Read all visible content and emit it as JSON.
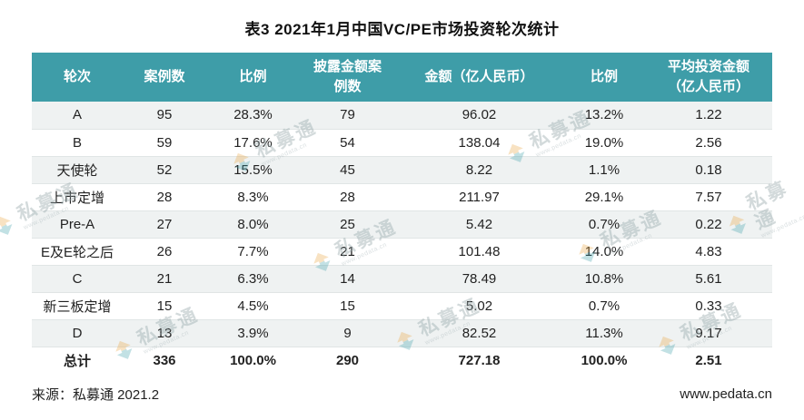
{
  "title": "表3 2021年1月中国VC/PE市场投资轮次统计",
  "table": {
    "headers": [
      "轮次",
      "案例数",
      "比例",
      "披露金额案例数",
      "金额（亿人民币）",
      "比例",
      "平均投资金额（亿人民币）"
    ],
    "rows": [
      [
        "A",
        "95",
        "28.3%",
        "79",
        "96.02",
        "13.2%",
        "1.22"
      ],
      [
        "B",
        "59",
        "17.6%",
        "54",
        "138.04",
        "19.0%",
        "2.56"
      ],
      [
        "天使轮",
        "52",
        "15.5%",
        "45",
        "8.22",
        "1.1%",
        "0.18"
      ],
      [
        "上市定增",
        "28",
        "8.3%",
        "28",
        "211.97",
        "29.1%",
        "7.57"
      ],
      [
        "Pre-A",
        "27",
        "8.0%",
        "25",
        "5.42",
        "0.7%",
        "0.22"
      ],
      [
        "E及E轮之后",
        "26",
        "7.7%",
        "21",
        "101.48",
        "14.0%",
        "4.83"
      ],
      [
        "C",
        "21",
        "6.3%",
        "14",
        "78.49",
        "10.8%",
        "5.61"
      ],
      [
        "新三板定增",
        "15",
        "4.5%",
        "15",
        "5.02",
        "0.7%",
        "0.33"
      ],
      [
        "D",
        "13",
        "3.9%",
        "9",
        "82.52",
        "11.3%",
        "9.17"
      ]
    ],
    "total_row": [
      "总计",
      "336",
      "100.0%",
      "290",
      "727.18",
      "100.0%",
      "2.51"
    ]
  },
  "footer": {
    "source": "来源：私募通 2021.2",
    "website": "www.pedata.cn"
  },
  "watermark": {
    "text": "私募通",
    "subtext": "www.pedata.cn"
  },
  "colors": {
    "header_bg": "#3E9DA8",
    "header_text": "#FFFFFF",
    "alt_row_bg": "#EEF1F1",
    "row_border": "#E0E5E5",
    "logo_orange": "#E8A23C",
    "logo_teal": "#3E9DA8"
  }
}
